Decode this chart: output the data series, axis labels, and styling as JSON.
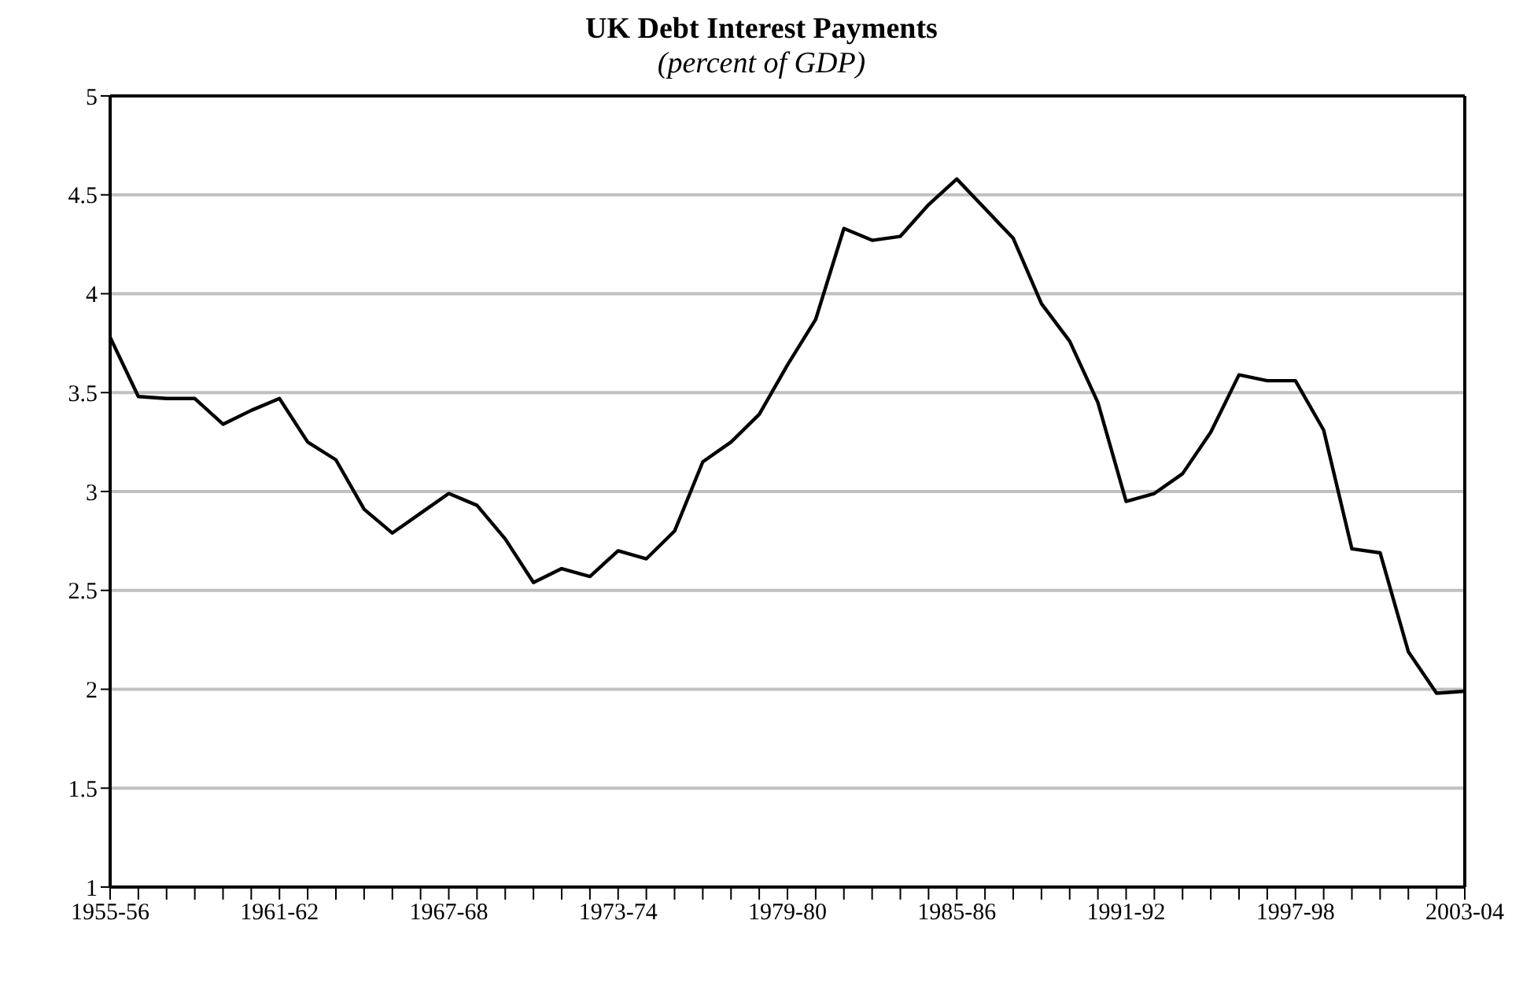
{
  "chart_data": {
    "type": "line",
    "title": "UK Debt Interest Payments",
    "subtitle": "(percent of GDP)",
    "categories": [
      "1955-56",
      null,
      null,
      null,
      null,
      null,
      "1961-62",
      null,
      null,
      null,
      null,
      null,
      "1967-68",
      null,
      null,
      null,
      null,
      null,
      "1973-74",
      null,
      null,
      null,
      null,
      null,
      "1979-80",
      null,
      null,
      null,
      null,
      null,
      "1985-86",
      null,
      null,
      null,
      null,
      null,
      "1991-92",
      null,
      null,
      null,
      null,
      null,
      "1997-98",
      null,
      null,
      null,
      null,
      null,
      "2003-04"
    ],
    "series": [
      {
        "color": "#000000",
        "values": [
          3.78,
          3.48,
          3.47,
          3.47,
          3.34,
          3.41,
          3.47,
          3.25,
          3.16,
          2.91,
          2.79,
          2.89,
          2.99,
          2.93,
          2.76,
          2.54,
          2.61,
          2.57,
          2.7,
          2.66,
          2.8,
          3.15,
          3.25,
          3.39,
          3.64,
          3.87,
          4.33,
          4.27,
          4.29,
          4.45,
          4.58,
          4.43,
          4.28,
          3.95,
          3.76,
          3.45,
          2.95,
          2.99,
          3.09,
          3.3,
          3.59,
          3.56,
          3.56,
          3.31,
          2.71,
          2.69,
          2.19,
          1.98,
          1.99
        ]
      }
    ],
    "ylim": [
      1,
      5
    ],
    "yticks": [
      1,
      1.5,
      2,
      2.5,
      3,
      3.5,
      4,
      4.5,
      5
    ],
    "grid": "y",
    "marker": "none",
    "line_style": "solid"
  }
}
